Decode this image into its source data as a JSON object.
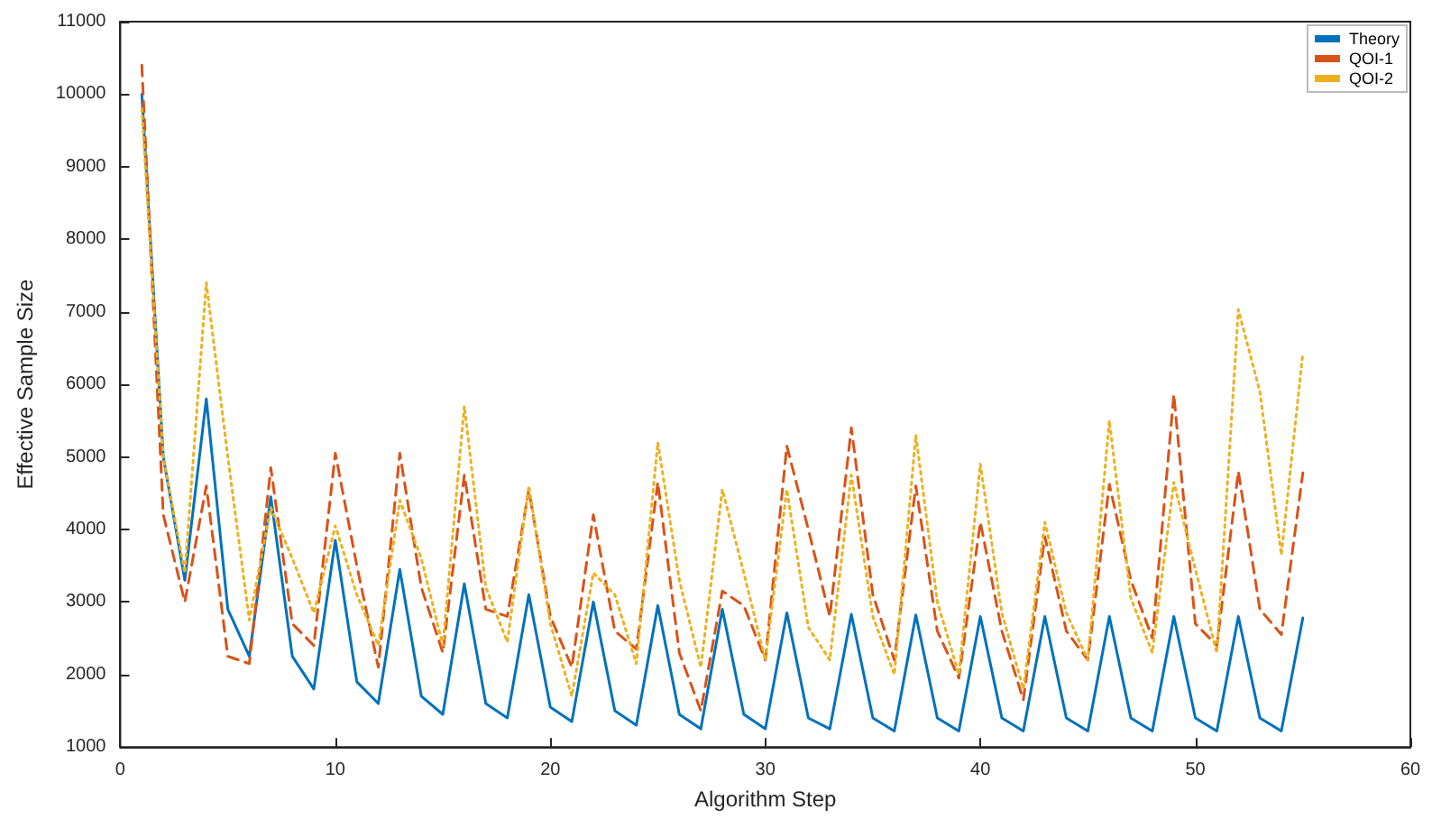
{
  "chart_data": {
    "type": "line",
    "xlabel": "Algorithm Step",
    "ylabel": "Effective Sample Size",
    "x": [
      1,
      2,
      3,
      4,
      5,
      6,
      7,
      8,
      9,
      10,
      11,
      12,
      13,
      14,
      15,
      16,
      17,
      18,
      19,
      20,
      21,
      22,
      23,
      24,
      25,
      26,
      27,
      28,
      29,
      30,
      31,
      32,
      33,
      34,
      35,
      36,
      37,
      38,
      39,
      40,
      41,
      42,
      43,
      44,
      45,
      46,
      47,
      48,
      49,
      50,
      51,
      52,
      53,
      54,
      55
    ],
    "series": [
      {
        "name": "Theory",
        "color": "#0072bd",
        "line_style": "solid",
        "values": [
          10000,
          5000,
          3300,
          5800,
          2900,
          2250,
          4450,
          2250,
          1800,
          3850,
          1900,
          1600,
          3450,
          1700,
          1450,
          3250,
          1600,
          1400,
          3100,
          1550,
          1350,
          3000,
          1500,
          1300,
          2950,
          1450,
          1250,
          2900,
          1450,
          1250,
          2850,
          1400,
          1250,
          2830,
          1400,
          1220,
          2820,
          1400,
          1220,
          2800,
          1400,
          1220,
          2800,
          1400,
          1220,
          2800,
          1400,
          1220,
          2800,
          1400,
          1220,
          2800,
          1400,
          1220,
          2780
        ]
      },
      {
        "name": "QOI-1",
        "color": "#d95319",
        "line_style": "dashed",
        "values": [
          10400,
          4200,
          3000,
          4600,
          2250,
          2150,
          4850,
          2700,
          2400,
          5050,
          3500,
          2100,
          5050,
          3200,
          2300,
          4750,
          2900,
          2800,
          4550,
          2800,
          2100,
          4200,
          2600,
          2350,
          4650,
          2300,
          1500,
          3150,
          2950,
          2200,
          5150,
          4000,
          2800,
          5400,
          3100,
          2200,
          4600,
          2600,
          1950,
          4100,
          2600,
          1650,
          3900,
          2600,
          2200,
          4620,
          3300,
          2500,
          5860,
          2700,
          2400,
          4800,
          2900,
          2550,
          4780
        ]
      },
      {
        "name": "QOI-2",
        "color": "#edb120",
        "line_style": "dotted",
        "values": [
          9800,
          5000,
          3400,
          7400,
          5000,
          2750,
          4300,
          3600,
          2850,
          4050,
          3100,
          2400,
          4400,
          3600,
          2400,
          5700,
          3200,
          2450,
          4600,
          2700,
          1700,
          3400,
          3100,
          2150,
          5200,
          3300,
          2100,
          4550,
          3400,
          2200,
          4550,
          2650,
          2200,
          4750,
          2800,
          2000,
          5300,
          3000,
          2000,
          4900,
          2850,
          1800,
          4100,
          2850,
          2200,
          5500,
          3050,
          2300,
          4650,
          3450,
          2300,
          7030,
          5900,
          3650,
          6430
        ]
      }
    ],
    "xlim": [
      0,
      60
    ],
    "xticks": [
      0,
      10,
      20,
      30,
      40,
      50,
      60
    ],
    "ylim": [
      1000,
      11000
    ],
    "yticks": [
      1000,
      2000,
      3000,
      4000,
      5000,
      6000,
      7000,
      8000,
      9000,
      10000,
      11000
    ],
    "legend": "top right",
    "marker": "none"
  }
}
